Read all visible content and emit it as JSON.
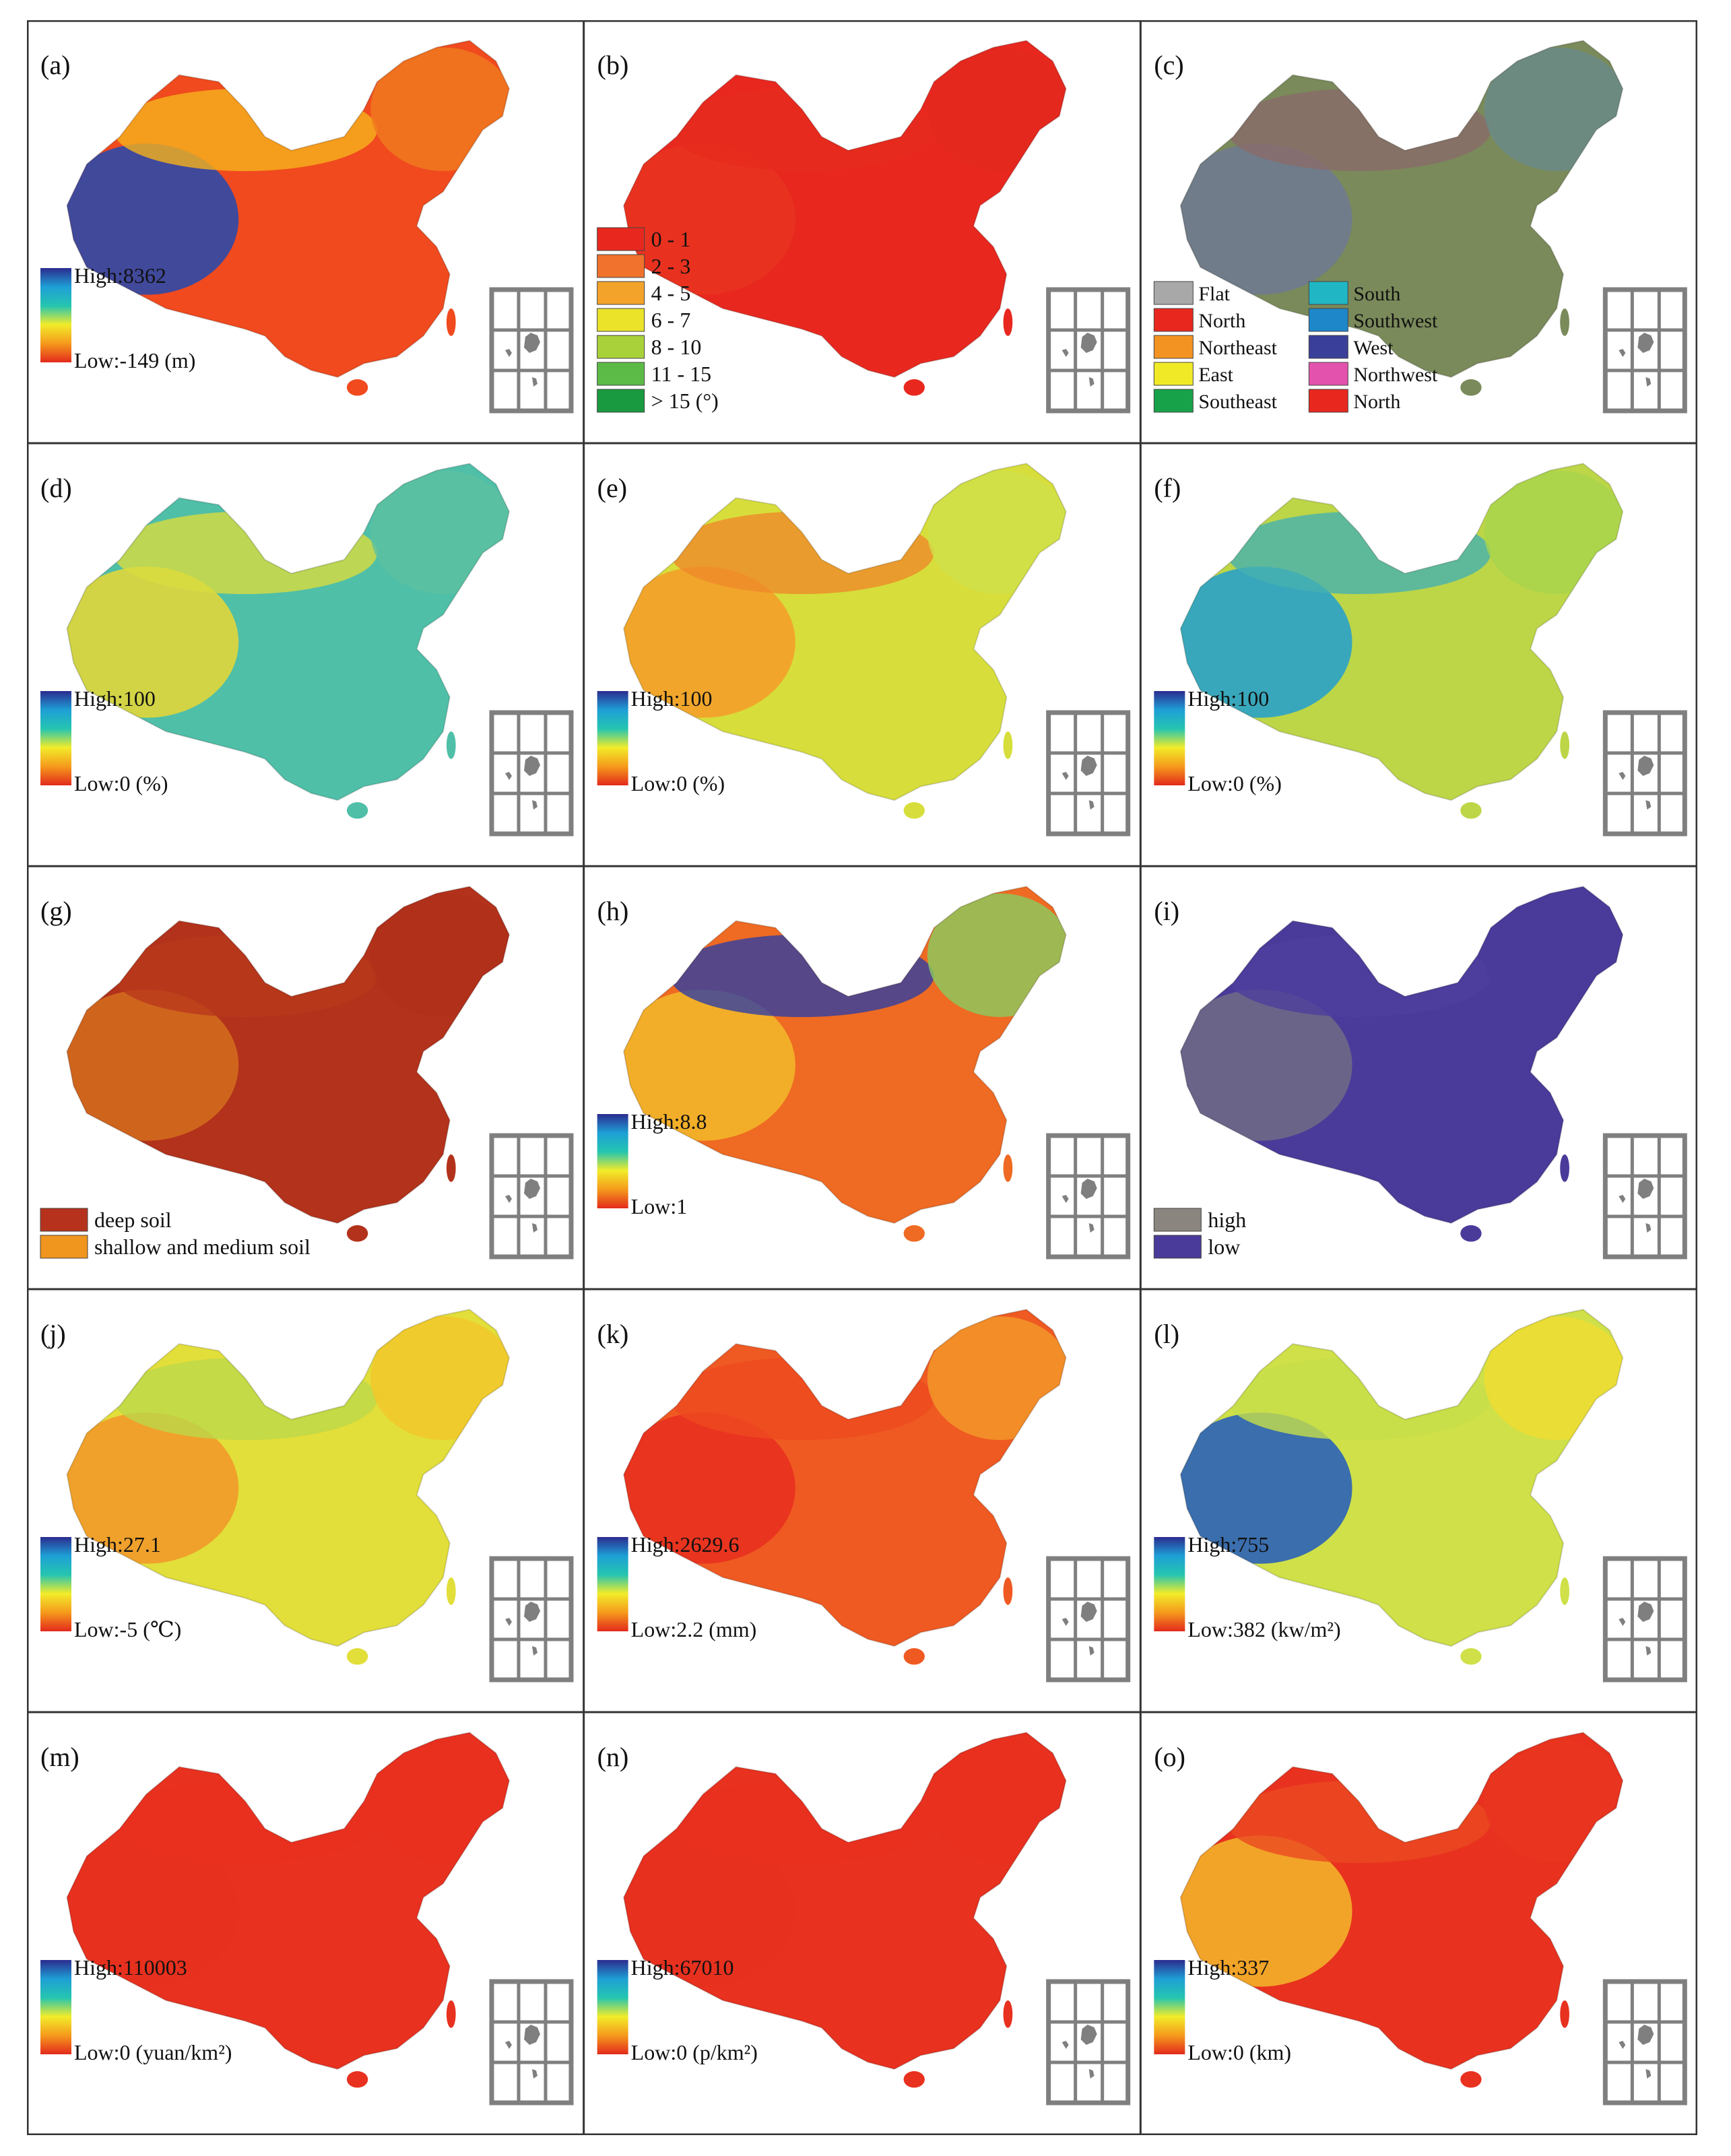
{
  "figure": {
    "gradient_stops": [
      "#2b2c8f",
      "#1e9fd6",
      "#25c5b0",
      "#f2ec2a",
      "#f59a1c",
      "#e32a1c"
    ],
    "inset_color": "#7f7f7f",
    "panels": [
      {
        "id": "a",
        "label": "(a)",
        "legend": {
          "type": "continuous",
          "high": "High:8362",
          "low": "Low:-149",
          "unit": "(m)"
        },
        "map": {
          "base": "#f04a1e",
          "west": "#2e49a8",
          "north": "#f6b21b",
          "northeast": "#f07a1e"
        }
      },
      {
        "id": "b",
        "label": "(b)",
        "legend": {
          "type": "classes",
          "items": [
            {
              "label": "0 - 1",
              "color": "#e8281f"
            },
            {
              "label": "2 - 3",
              "color": "#f0722c"
            },
            {
              "label": "4 - 5",
              "color": "#f4a32a"
            },
            {
              "label": "6 - 7",
              "color": "#eae32a"
            },
            {
              "label": "8 - 10",
              "color": "#a9d23a"
            },
            {
              "label": "11 - 15",
              "color": "#5cbb46"
            },
            {
              "label": "> 15 (°)",
              "color": "#1a9a40"
            }
          ]
        },
        "map": {
          "base": "#e8281f",
          "west": "#e8331f",
          "north": "#e62a1e",
          "northeast": "#e4281e"
        }
      },
      {
        "id": "c",
        "label": "(c)",
        "legend": {
          "type": "classes2",
          "items": [
            {
              "label": "Flat",
              "color": "#a8a8a8"
            },
            {
              "label": "North",
              "color": "#e8281f"
            },
            {
              "label": "Northeast",
              "color": "#f39422"
            },
            {
              "label": "East",
              "color": "#f0ea26"
            },
            {
              "label": "Southeast",
              "color": "#17a24a"
            },
            {
              "label": "South",
              "color": "#20b6c3"
            },
            {
              "label": "Southwest",
              "color": "#1e87c9"
            },
            {
              "label": "West",
              "color": "#3a3f9a"
            },
            {
              "label": "Northwest",
              "color": "#e353ad"
            },
            {
              "label": "North",
              "color": "#e8281f"
            }
          ]
        },
        "map": {
          "base": "#7a8a5a",
          "west": "#6f7a8e",
          "north": "#8a6a6a",
          "northeast": "#6a8a8a"
        }
      },
      {
        "id": "d",
        "label": "(d)",
        "legend": {
          "type": "continuous",
          "high": "High:100",
          "low": "Low:0",
          "unit": "(%)"
        },
        "map": {
          "base": "#4fbfa8",
          "west": "#e0d63a",
          "north": "#d8dc3e",
          "northeast": "#5cc1a0"
        }
      },
      {
        "id": "e",
        "label": "(e)",
        "legend": {
          "type": "continuous",
          "high": "High:100",
          "low": "Low:0",
          "unit": "(%)"
        },
        "map": {
          "base": "#d7de3b",
          "west": "#f4a02a",
          "north": "#ef8a2a",
          "northeast": "#cfe04a"
        }
      },
      {
        "id": "f",
        "label": "(f)",
        "legend": {
          "type": "continuous",
          "high": "High:100",
          "low": "Low:0",
          "unit": "(%)"
        },
        "map": {
          "base": "#bcd648",
          "west": "#2aa2c8",
          "north": "#46b2b0",
          "northeast": "#a9d44c"
        }
      },
      {
        "id": "g",
        "label": "(g)",
        "legend": {
          "type": "classes",
          "items": [
            {
              "label": "deep soil",
              "color": "#b6321c"
            },
            {
              "label": "shallow and medium soil",
              "color": "#f0951e"
            }
          ]
        },
        "map": {
          "base": "#b3321b",
          "west": "#d26a1e",
          "north": "#b8381b",
          "northeast": "#b0301a"
        }
      },
      {
        "id": "h",
        "label": "(h)",
        "legend": {
          "type": "continuous",
          "high": "High:8.8",
          "low": "Low:1",
          "unit": ""
        },
        "map": {
          "base": "#ef6a22",
          "west": "#f2b62a",
          "north": "#2f3fa2",
          "northeast": "#8acc60"
        }
      },
      {
        "id": "i",
        "label": "(i)",
        "legend": {
          "type": "classes",
          "items": [
            {
              "label": "high",
              "color": "#8a857e"
            },
            {
              "label": "low",
              "color": "#4a3b9a"
            }
          ]
        },
        "map": {
          "base": "#4a3b9a",
          "west": "#6e6a86",
          "north": "#4d3e9c",
          "northeast": "#4a3b9a"
        }
      },
      {
        "id": "j",
        "label": "(j)",
        "legend": {
          "type": "continuous",
          "high": "High:27.1",
          "low": "Low:-5",
          "unit": "(℃)"
        },
        "map": {
          "base": "#e2de3a",
          "west": "#f29a2a",
          "north": "#bdd84a",
          "northeast": "#f4c52a"
        }
      },
      {
        "id": "k",
        "label": "(k)",
        "legend": {
          "type": "continuous",
          "high": "High:2629.6",
          "low": "Low:2.2",
          "unit": "(mm)"
        },
        "map": {
          "base": "#ef5a22",
          "west": "#e8301f",
          "north": "#ee4a20",
          "northeast": "#f29a2a"
        }
      },
      {
        "id": "l",
        "label": "(l)",
        "legend": {
          "type": "continuous",
          "high": "High:755",
          "low": "Low:382",
          "unit": "(kw/m²)"
        },
        "map": {
          "base": "#cfe048",
          "west": "#2a62b8",
          "north": "#c6de4a",
          "northeast": "#f0dc32"
        }
      },
      {
        "id": "m",
        "label": "(m)",
        "legend": {
          "type": "continuous",
          "high": "High:110003",
          "low": "Low:0",
          "unit": "(yuan/km²)"
        },
        "map": {
          "base": "#e8311f",
          "west": "#e8311f",
          "north": "#e8311f",
          "northeast": "#e8311f"
        }
      },
      {
        "id": "n",
        "label": "(n)",
        "legend": {
          "type": "continuous",
          "high": "High:67010",
          "low": "Low:0",
          "unit": "(p/km²)"
        },
        "map": {
          "base": "#e8311f",
          "west": "#e8311f",
          "north": "#e8311f",
          "northeast": "#e8311f"
        }
      },
      {
        "id": "o",
        "label": "(o)",
        "legend": {
          "type": "continuous",
          "high": "High:337",
          "low": "Low:0",
          "unit": "(km)"
        },
        "map": {
          "base": "#e8321f",
          "west": "#f3b02a",
          "north": "#ea4a20",
          "northeast": "#e8341f"
        }
      }
    ]
  }
}
